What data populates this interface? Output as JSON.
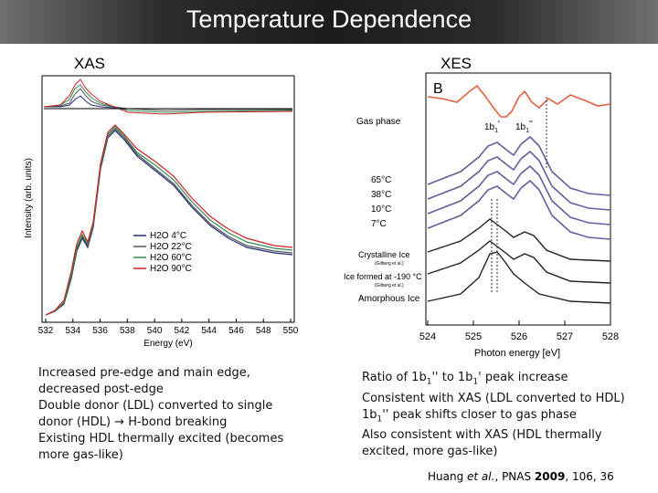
{
  "title": "Temperature Dependence",
  "xas": {
    "label": "XAS",
    "ylabel": "Intensity (arb. units)",
    "xlabel": "Energy (eV)",
    "ticks": [
      "532",
      "534",
      "536",
      "538",
      "540",
      "542",
      "544",
      "546",
      "548",
      "550"
    ],
    "legend": [
      "H2O 4°C",
      "H2O 22°C",
      "H2O 60°C",
      "H2O 90°C"
    ],
    "legend_colors": [
      "#1f2a7a",
      "#555555",
      "#2e8b57",
      "#cc2222"
    ]
  },
  "xes": {
    "label": "XES",
    "panel_letter": "B",
    "gas_phase": "Gas phase",
    "peak1": "1b",
    "peak1_sub": "1",
    "peak1_sup": "'",
    "peak2": "1b",
    "peak2_sub": "1",
    "peak2_sup": "''",
    "temps": [
      "65°C",
      "38°C",
      "10°C",
      "7°C"
    ],
    "crystalline": "Crystalline Ice",
    "crystalline_ref": "(Gilberg et al.)",
    "ice_formed": "Ice formed at -190 °C",
    "ice_formed_ref": "(Gilberg et al.)",
    "amorphous": "Amorphous Ice",
    "ticks": [
      "524",
      "525",
      "526",
      "527",
      "528"
    ],
    "xlabel": "Photon energy [eV]"
  },
  "notes_left": [
    "Increased pre-edge and main edge, decreased post-edge",
    "Double donor (LDL) converted to single donor (HDL) → H-bond breaking",
    "Existing HDL thermally excited (becomes more gas-like)"
  ],
  "notes_right": {
    "l1_a": "Ratio of 1b",
    "l1_sub1": "1",
    "l1_b": "'' to 1b",
    "l1_sub2": "1",
    "l1_c": "' peak increase",
    "l2": "Consistent with XAS (LDL converted to HDL)",
    "l3_a": "1b",
    "l3_sub": "1",
    "l3_b": "'' peak shifts closer to gas phase",
    "l4": "Also consistent with XAS (HDL thermally excited, more gas-like)"
  },
  "citation": {
    "authors": "Huang ",
    "etal": "et al.",
    "journal": ", PNAS ",
    "year": "2009",
    "rest": ", 106, 36"
  }
}
